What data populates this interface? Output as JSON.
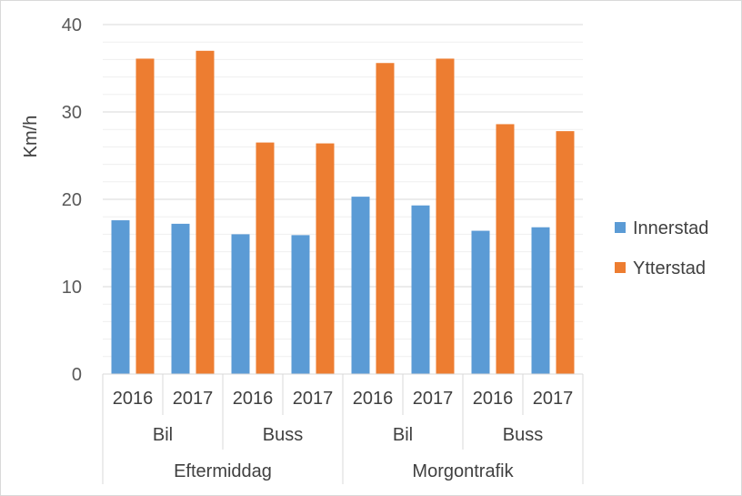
{
  "chart_data": {
    "type": "bar",
    "title": "",
    "xlabel": "",
    "ylabel": "Km/h",
    "ylim": [
      0,
      40
    ],
    "yticks": [
      0,
      10,
      20,
      30,
      40
    ],
    "grid": true,
    "legend_position": "right",
    "category_levels": {
      "years": [
        "2016",
        "2017",
        "2016",
        "2017",
        "2016",
        "2017",
        "2016",
        "2017"
      ],
      "modes": [
        "Bil",
        "Buss",
        "Bil",
        "Buss"
      ],
      "periods": [
        "Eftermiddag",
        "Morgontrafik"
      ]
    },
    "categories": [
      "Eftermiddag / Bil / 2016",
      "Eftermiddag / Bil / 2017",
      "Eftermiddag / Buss / 2016",
      "Eftermiddag / Buss / 2017",
      "Morgontrafik / Bil / 2016",
      "Morgontrafik / Bil / 2017",
      "Morgontrafik / Buss / 2016",
      "Morgontrafik / Buss / 2017"
    ],
    "series": [
      {
        "name": "Innerstad",
        "color": "#5b9bd5",
        "values": [
          17.6,
          17.2,
          16.0,
          15.9,
          20.3,
          19.3,
          16.4,
          16.8
        ]
      },
      {
        "name": "Ytterstad",
        "color": "#ed7d31",
        "values": [
          36.1,
          37.0,
          26.5,
          26.4,
          35.6,
          36.1,
          28.6,
          27.8
        ]
      }
    ]
  }
}
